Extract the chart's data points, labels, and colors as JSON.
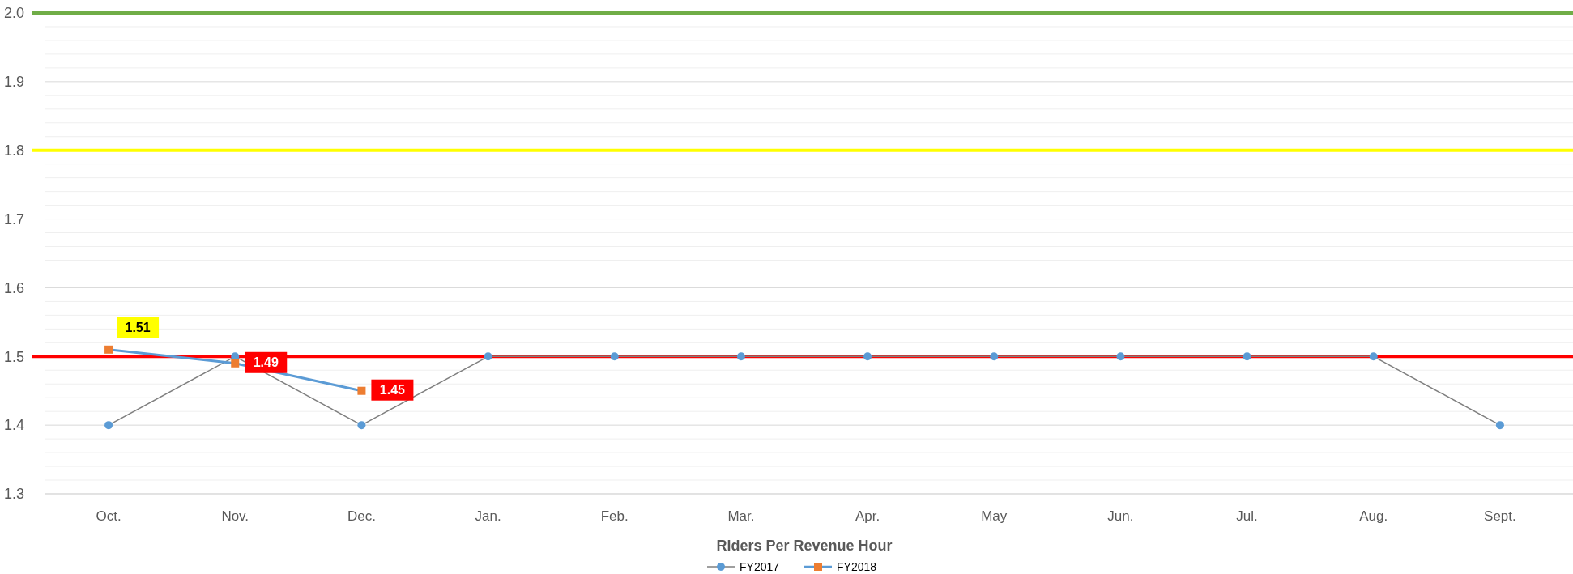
{
  "chart_data": {
    "type": "line",
    "xlabel": "Riders Per Revenue Hour",
    "categories": [
      "Oct.",
      "Nov.",
      "Dec.",
      "Jan.",
      "Feb.",
      "Mar.",
      "Apr.",
      "May",
      "Jun.",
      "Jul.",
      "Aug.",
      "Sept."
    ],
    "series": [
      {
        "name": "FY2017",
        "color": "#5b9bd5",
        "marker": "circle",
        "values": [
          1.4,
          1.5,
          1.4,
          1.5,
          1.5,
          1.5,
          1.5,
          1.5,
          1.5,
          1.5,
          1.5,
          1.4
        ]
      },
      {
        "name": "FY2018",
        "color": "#ed7d31",
        "marker": "square",
        "values": [
          1.51,
          1.49,
          1.45,
          null,
          null,
          null,
          null,
          null,
          null,
          null,
          null,
          null
        ],
        "value_labels": [
          "1.51",
          "1.49",
          "1.45",
          null,
          null,
          null,
          null,
          null,
          null,
          null,
          null,
          null
        ]
      }
    ],
    "ylim": [
      1.3,
      2.0
    ],
    "yticks": [
      {
        "value": 1.3,
        "label": "1.3"
      },
      {
        "value": 1.4,
        "label": "1.4"
      },
      {
        "value": 1.5,
        "label": "1.5"
      },
      {
        "value": 1.6,
        "label": "1.6"
      },
      {
        "value": 1.7,
        "label": "1.7"
      },
      {
        "value": 1.8,
        "label": "1.8"
      },
      {
        "value": 1.9,
        "label": "1.9"
      },
      {
        "value": 2.0,
        "label": "2.0"
      }
    ],
    "grid": "y",
    "legend": "bottom",
    "ref_lines": [
      {
        "axis": "y",
        "value": 2.0,
        "color": "#70ad47"
      },
      {
        "axis": "y",
        "value": 1.8,
        "color": "#ffff00"
      },
      {
        "axis": "y",
        "value": 1.5,
        "color": "#ff0000"
      }
    ]
  }
}
